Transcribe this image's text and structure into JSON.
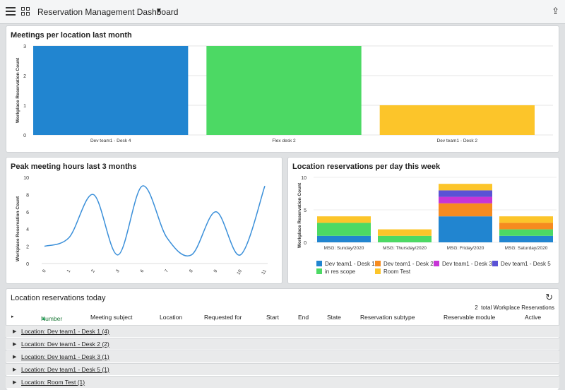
{
  "header": {
    "title": "Reservation Management Dashboard",
    "menu_icon": "hamburger-icon",
    "apps_icon": "grid-icon",
    "share_icon": "share-icon"
  },
  "colors": {
    "blue": "#2185d0",
    "green": "#4cd964",
    "yellow": "#fcc52a",
    "orange": "#f68b1f",
    "magenta": "#c735d6",
    "indigo": "#5a52d5",
    "line": "#3a8fd9"
  },
  "panels": {
    "p1_title": "Meetings per location last month",
    "p2_title": "Peak meeting hours last 3 months",
    "p3_title": "Location reservations per day this week",
    "p4_title": "Location reservations today"
  },
  "chart_data": [
    {
      "type": "bar",
      "title": "Meetings per location last month",
      "ylabel": "Workplace Reservation Count",
      "categories": [
        "Dev team1 - Desk 4",
        "Flex desk 2",
        "Dev team1 - Desk 2"
      ],
      "values": [
        3,
        3,
        1
      ],
      "colors": [
        "#2185d0",
        "#4cd964",
        "#fcc52a"
      ],
      "ylim": [
        0,
        3
      ],
      "yticks": [
        "0",
        "1",
        "2",
        "3"
      ]
    },
    {
      "type": "line",
      "title": "Peak meeting hours last 3 months",
      "ylabel": "Workplace Reservation Count",
      "x": [
        "0",
        "1",
        "2",
        "3",
        "6",
        "7",
        "8",
        "9",
        "10",
        "11"
      ],
      "values": [
        2,
        3,
        8,
        1,
        9,
        3,
        1,
        6,
        1,
        9
      ],
      "ylim": [
        0,
        10
      ],
      "yticks": [
        "0",
        "2",
        "4",
        "6",
        "8",
        "10"
      ]
    },
    {
      "type": "bar",
      "stacked": true,
      "title": "Location reservations per day this week",
      "ylabel": "Workplace Reservation Count",
      "categories": [
        "MSG: Sunday/2020",
        "MSG: Thursday/2020",
        "MSG: Friday/2020",
        "MSG: Saturday/2020"
      ],
      "ylim": [
        0,
        10
      ],
      "yticks": [
        "0",
        "5",
        "10"
      ],
      "series": [
        {
          "name": "Dev team1 - Desk 1",
          "color": "#2185d0",
          "values": [
            1,
            0,
            4,
            1
          ]
        },
        {
          "name": "in res scope",
          "color": "#4cd964",
          "values": [
            2,
            1,
            0,
            1
          ]
        },
        {
          "name": "Dev team1 - Desk 2",
          "color": "#f68b1f",
          "values": [
            0,
            0,
            2,
            1
          ]
        },
        {
          "name": "Dev team1 - Desk 3",
          "color": "#c735d6",
          "values": [
            0,
            0,
            1,
            0
          ]
        },
        {
          "name": "Dev team1 - Desk 5",
          "color": "#5a52d5",
          "values": [
            0,
            0,
            1,
            0
          ]
        },
        {
          "name": "Room Test",
          "color": "#fcc52a",
          "values": [
            1,
            1,
            1,
            1
          ]
        }
      ]
    }
  ],
  "table": {
    "total_count": "2",
    "total_label": "total Workplace Reservations",
    "refresh_icon": "refresh-icon",
    "columns": [
      "Number",
      "Meeting subject",
      "Location",
      "Requested for",
      "Start",
      "End",
      "State",
      "Reservation subtype",
      "Reservable module",
      "Active"
    ],
    "sort_indicator": "▲",
    "groups": [
      "Location: Dev team1 - Desk 1 (4)",
      "Location: Dev team1 - Desk 2 (2)",
      "Location: Dev team1 - Desk 3 (1)",
      "Location: Dev team1 - Desk 5 (1)",
      "Location: Room Test (1)"
    ]
  }
}
